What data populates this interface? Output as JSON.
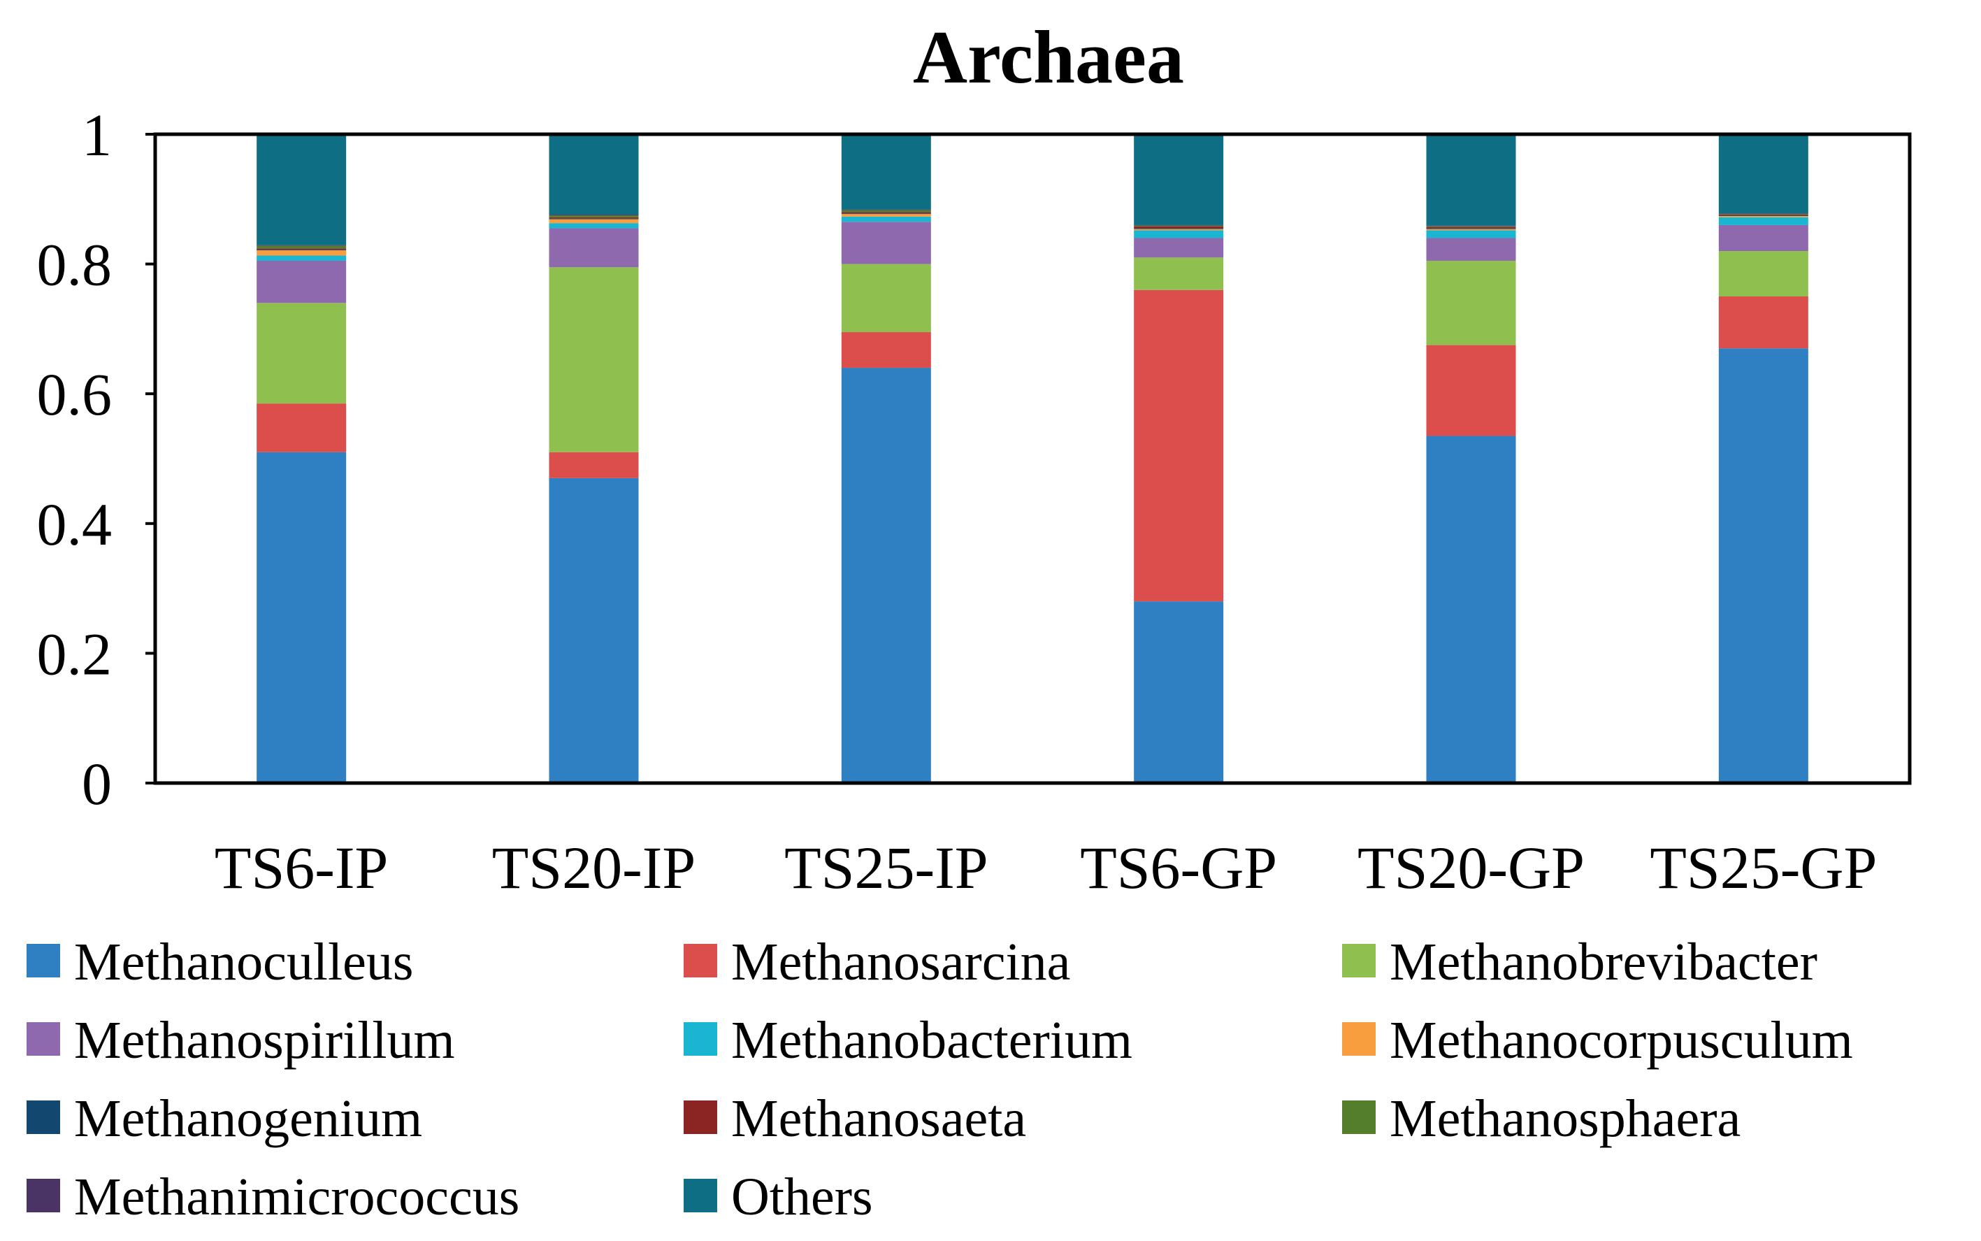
{
  "chart_data": {
    "type": "bar",
    "stacked": true,
    "title": "Archaea",
    "xlabel": "",
    "ylabel": "",
    "ylim": [
      0,
      1
    ],
    "yticks": [
      "0",
      "0.2",
      "0.4",
      "0.6",
      "0.8",
      "1"
    ],
    "grid": false,
    "legend_position": "bottom",
    "categories": [
      "TS6-IP",
      "TS20-IP",
      "TS25-IP",
      "TS6-GP",
      "TS20-GP",
      "TS25-GP"
    ],
    "series": [
      {
        "name": "Methanoculleus",
        "color": "#2E80C2",
        "values": [
          0.51,
          0.47,
          0.64,
          0.28,
          0.535,
          0.67
        ]
      },
      {
        "name": "Methanosarcina",
        "color": "#DC4E4C",
        "values": [
          0.075,
          0.04,
          0.055,
          0.48,
          0.14,
          0.08
        ]
      },
      {
        "name": "Methanobrevibacter",
        "color": "#8FBF4F",
        "values": [
          0.155,
          0.285,
          0.105,
          0.05,
          0.13,
          0.07
        ]
      },
      {
        "name": "Methanospirillum",
        "color": "#8E69AE",
        "values": [
          0.065,
          0.06,
          0.065,
          0.03,
          0.035,
          0.04
        ]
      },
      {
        "name": "Methanobacterium",
        "color": "#1AB5D0",
        "values": [
          0.008,
          0.008,
          0.008,
          0.012,
          0.012,
          0.012
        ]
      },
      {
        "name": "Methanocorpusculum",
        "color": "#F89E3E",
        "values": [
          0.008,
          0.006,
          0.004,
          0.002,
          0.002,
          0.002
        ]
      },
      {
        "name": "Methanogenium",
        "color": "#12476F",
        "values": [
          0.001,
          0.001,
          0.001,
          0.001,
          0.001,
          0.001
        ]
      },
      {
        "name": "Methanosaeta",
        "color": "#8B2523",
        "values": [
          0.002,
          0.002,
          0.002,
          0.003,
          0.002,
          0.001
        ]
      },
      {
        "name": "Methanosphaera",
        "color": "#547E2C",
        "values": [
          0.004,
          0.003,
          0.003,
          0.001,
          0.001,
          0.001
        ]
      },
      {
        "name": "Methanimicrococcus",
        "color": "#4A3465",
        "values": [
          0.001,
          0.001,
          0.001,
          0.001,
          0.001,
          0.001
        ]
      },
      {
        "name": "Others",
        "color": "#0E6E83",
        "values": [
          0.171,
          0.124,
          0.116,
          0.142,
          0.141,
          0.122
        ]
      }
    ]
  }
}
